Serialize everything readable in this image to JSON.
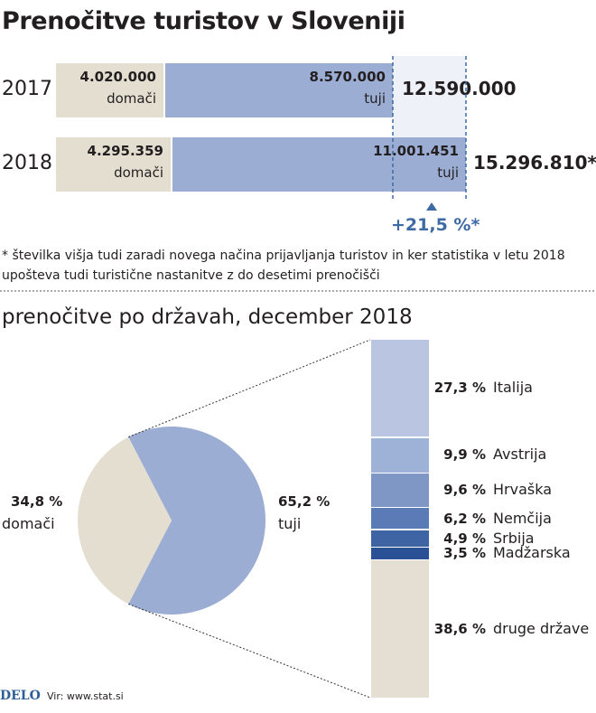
{
  "title": "Prenočitve turistov v Sloveniji",
  "footnote": "* številka višja tudi zaradi novega načina prijavljanja turistov in ker statistika v letu 2018 upošteva tudi turistične nastanitve z do desetimi prenočišči",
  "subtitle": "prenočitve po državah, december 2018",
  "source_brand": "DELO",
  "source": "Vir: www.stat.si",
  "colors": {
    "domestic": "#e3ded0",
    "foreign": "#9badd3",
    "highlight": "#eef1f8",
    "accent": "#3e6aa3"
  },
  "chart_data": [
    {
      "type": "bar",
      "categories": [
        "2017",
        "2018"
      ],
      "series": [
        {
          "name": "domači",
          "values": [
            4020000,
            4295359
          ],
          "labels": [
            "4.020.000",
            "4.295.359"
          ]
        },
        {
          "name": "tuji",
          "values": [
            8570000,
            11001451
          ],
          "labels": [
            "8.570.000",
            "11.001.451"
          ]
        }
      ],
      "totals": [
        "12.590.000",
        "15.296.810*"
      ],
      "growth_label": "+21,5 %*"
    },
    {
      "type": "pie",
      "slices": [
        {
          "name": "domači",
          "value": 34.8,
          "label": "34,8 %"
        },
        {
          "name": "tuji",
          "value": 65.2,
          "label": "65,2 %"
        }
      ]
    },
    {
      "type": "bar",
      "stacked": true,
      "categories": [
        "Italija",
        "Avstrija",
        "Hrvaška",
        "Nemčija",
        "Srbija",
        "Madžarska",
        "druge države"
      ],
      "values": [
        27.3,
        9.9,
        9.6,
        6.2,
        4.9,
        3.5,
        38.6
      ],
      "labels": [
        "27,3 %",
        "9,9 %",
        "9,6 %",
        "6,2 %",
        "4,9 %",
        "3,5 %",
        "38,6 %"
      ],
      "colors": [
        "#bac6e1",
        "#9db2d6",
        "#7e97c5",
        "#5a7bb6",
        "#3f64a3",
        "#2a5196",
        "#e4dfd2"
      ]
    }
  ]
}
